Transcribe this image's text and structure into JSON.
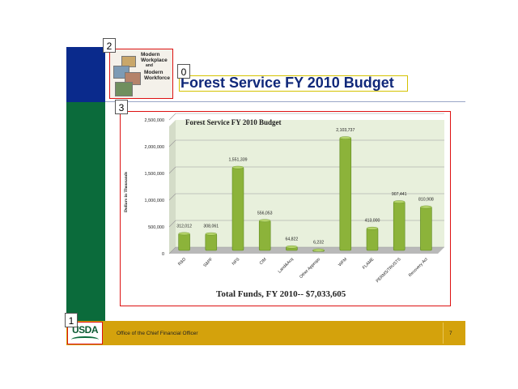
{
  "slide": {
    "title": "Forest Service FY 2010 Budget",
    "footer_text": "Office of the Chief Financial Officer",
    "page_number": "7",
    "logo_lines": [
      "Modern",
      "Workplace",
      "and",
      "Modern",
      "Workforce"
    ],
    "usda_logo": "USDA",
    "markers": [
      "0",
      "1",
      "2",
      "3"
    ]
  },
  "chart_data": {
    "type": "bar",
    "title": "Forest Service FY 2010 Budget",
    "ylabel": "Dollars in Thousands",
    "xlabel": "",
    "subtitle": "Total Funds, FY 2010-- $7,033,605",
    "categories": [
      "R&D",
      "S&PF",
      "NFS",
      "CIM",
      "Land&Acq",
      "Other Approps",
      "WFM",
      "FLAME",
      "PERMS/TRUSTS",
      "Recovery Act"
    ],
    "values": [
      312012,
      308061,
      1551339,
      556053,
      64822,
      6232,
      2103737,
      413000,
      907441,
      810908
    ],
    "value_labels": [
      "312,012",
      "308,061",
      "1,551,339",
      "556,053",
      "64,822",
      "6,232",
      "2,103,737",
      "413,000",
      "907,441",
      "810,908"
    ],
    "yticks": [
      0,
      500000,
      1000000,
      1500000,
      2000000,
      2500000
    ],
    "ytick_labels": [
      "0",
      "500,000",
      "1,000,000",
      "1,500,000",
      "2,000,000",
      "2,500,000"
    ],
    "ylim": [
      0,
      2500000
    ],
    "grid": true,
    "colors": {
      "bar": "#8cb33a",
      "bar_dark": "#5e8a1f",
      "plot_bg": "#e8f0dc"
    }
  }
}
